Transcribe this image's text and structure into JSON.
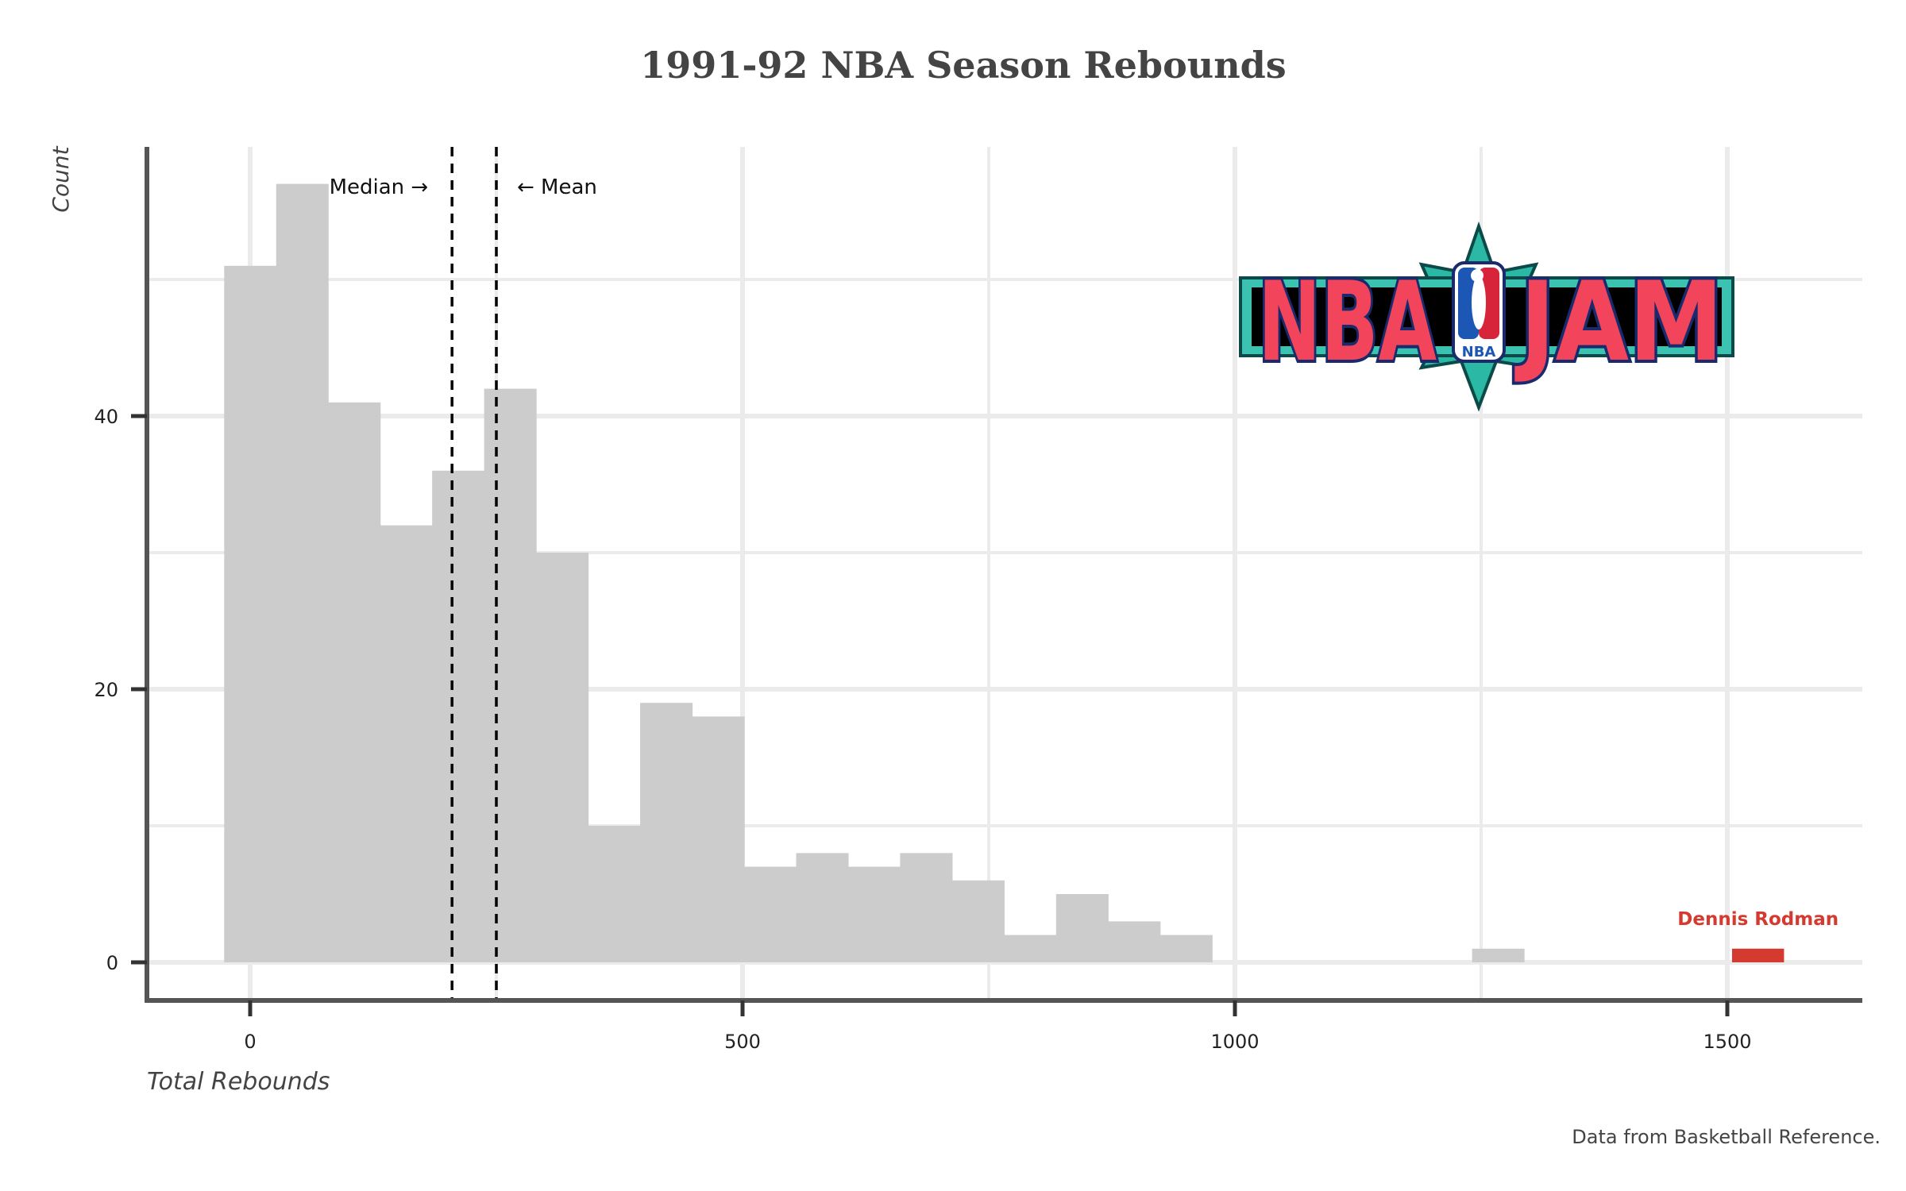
{
  "chart_data": {
    "type": "bar",
    "title": "1991-92 NBA Season Rebounds",
    "xlabel": "Total Rebounds",
    "ylabel": "Count",
    "caption": "Data from Basketball Reference.",
    "xlim": [
      -105,
      1640
    ],
    "ylim": [
      -1.5,
      60
    ],
    "x_ticks": [
      0,
      500,
      1000,
      1500
    ],
    "y_ticks": [
      0,
      20,
      40
    ],
    "y_minor_gridlines": [
      10,
      30,
      50
    ],
    "x_minor_gridlines": [
      250,
      750,
      1250
    ],
    "grid": true,
    "bin_width": 52.8,
    "bins": [
      {
        "x0": -26.4,
        "x1": 26.4,
        "count": 51
      },
      {
        "x0": 26.4,
        "x1": 79.2,
        "count": 57
      },
      {
        "x0": 79.2,
        "x1": 132.0,
        "count": 41
      },
      {
        "x0": 132.0,
        "x1": 184.8,
        "count": 32
      },
      {
        "x0": 184.8,
        "x1": 237.6,
        "count": 36
      },
      {
        "x0": 237.6,
        "x1": 290.4,
        "count": 42
      },
      {
        "x0": 290.4,
        "x1": 343.2,
        "count": 30
      },
      {
        "x0": 343.2,
        "x1": 396.0,
        "count": 10
      },
      {
        "x0": 396.0,
        "x1": 448.8,
        "count": 19
      },
      {
        "x0": 448.8,
        "x1": 501.6,
        "count": 18
      },
      {
        "x0": 501.6,
        "x1": 554.4,
        "count": 7
      },
      {
        "x0": 554.4,
        "x1": 607.2,
        "count": 8
      },
      {
        "x0": 607.2,
        "x1": 660.0,
        "count": 7
      },
      {
        "x0": 660.0,
        "x1": 712.8,
        "count": 8
      },
      {
        "x0": 712.8,
        "x1": 765.6,
        "count": 6
      },
      {
        "x0": 765.6,
        "x1": 818.4,
        "count": 2
      },
      {
        "x0": 818.4,
        "x1": 871.2,
        "count": 5
      },
      {
        "x0": 871.2,
        "x1": 924.0,
        "count": 3
      },
      {
        "x0": 924.0,
        "x1": 976.8,
        "count": 2
      },
      {
        "x0": 1240.8,
        "x1": 1293.6,
        "count": 1
      }
    ],
    "highlight": {
      "x0": 1504.8,
      "x1": 1557.6,
      "count": 1,
      "label": "Dennis Rodman",
      "color": "#d43a2f"
    },
    "reference_lines": [
      {
        "label": "Median →",
        "x": 205
      },
      {
        "label": "← Mean",
        "x": 250
      }
    ],
    "bar_color": "#cccccc",
    "grid_color": "#ebebeb",
    "axis_color": "#555555"
  },
  "logo": {
    "text_left": "NBA",
    "text_right": "JAM",
    "badge": "NBA",
    "text_color": "#f2455b",
    "outline_color": "#1a2a6c",
    "teal_color": "#1f9e8f"
  }
}
